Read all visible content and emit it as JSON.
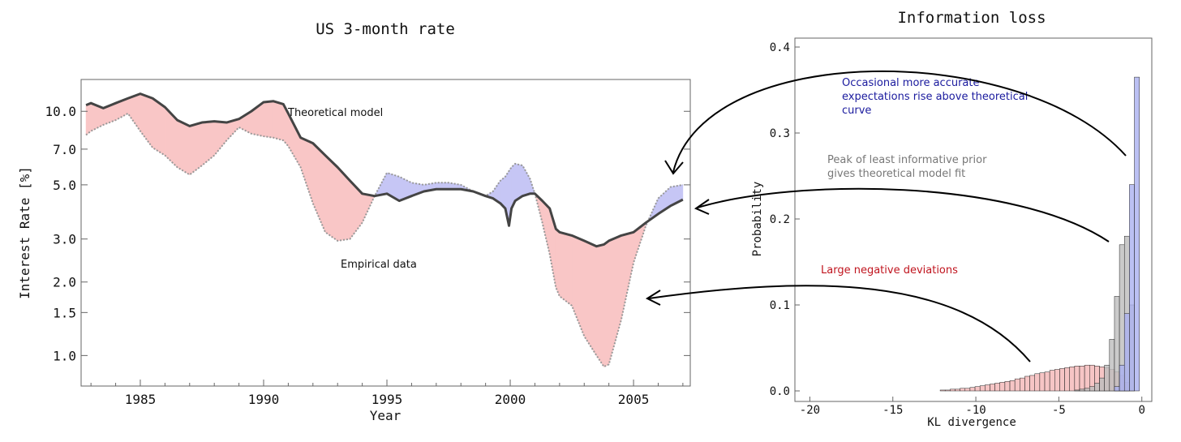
{
  "chart_data": [
    {
      "type": "area",
      "title": "US 3-month rate",
      "xlabel": "Year",
      "ylabel": "Interest Rate [%]",
      "yscale": "log",
      "xlim": [
        1982.6,
        2007.3
      ],
      "ylim": [
        0.75,
        13.5
      ],
      "x_ticks": [
        "1985",
        "1990",
        "1995",
        "2000",
        "2005"
      ],
      "y_ticks": [
        "1.0",
        "1.5",
        "2.0",
        "3.0",
        "5.0",
        "7.0",
        "10.0"
      ],
      "fill_colors": {
        "model_above_data": "#f9c6c6",
        "data_above_model": "#c6c6f5"
      },
      "annotations": [
        "Theoretical model",
        "Empirical data"
      ],
      "series": [
        {
          "name": "Theoretical model",
          "color": "#444444",
          "x": [
            1982.8,
            1983.0,
            1983.5,
            1984.0,
            1984.5,
            1985.0,
            1985.5,
            1986.0,
            1986.5,
            1987.0,
            1987.5,
            1988.0,
            1988.5,
            1989.0,
            1989.5,
            1990.0,
            1990.4,
            1990.8,
            1991.0,
            1991.5,
            1992.0,
            1992.5,
            1993.0,
            1993.5,
            1994.0,
            1994.5,
            1995.0,
            1995.5,
            1996.0,
            1996.5,
            1997.0,
            1997.5,
            1998.0,
            1998.5,
            1999.0,
            1999.3,
            1999.6,
            1999.8,
            1999.95,
            2000.05,
            2000.2,
            2000.5,
            2000.8,
            2001.0,
            2001.3,
            2001.6,
            2001.85,
            2002.0,
            2002.5,
            2003.0,
            2003.5,
            2003.8,
            2004.0,
            2004.5,
            2005.0,
            2005.5,
            2006.0,
            2006.5,
            2007.0
          ],
          "y": [
            10.6,
            10.8,
            10.3,
            10.8,
            11.3,
            11.8,
            11.3,
            10.4,
            9.2,
            8.7,
            9.0,
            9.1,
            9.0,
            9.3,
            10.0,
            10.9,
            11.0,
            10.7,
            9.8,
            7.8,
            7.4,
            6.6,
            5.9,
            5.2,
            4.6,
            4.5,
            4.6,
            4.3,
            4.5,
            4.7,
            4.8,
            4.8,
            4.8,
            4.7,
            4.5,
            4.4,
            4.2,
            4.0,
            3.4,
            4.0,
            4.3,
            4.5,
            4.6,
            4.6,
            4.3,
            4.0,
            3.3,
            3.2,
            3.1,
            2.95,
            2.8,
            2.85,
            2.95,
            3.1,
            3.2,
            3.5,
            3.8,
            4.1,
            4.35
          ]
        },
        {
          "name": "Empirical data",
          "color": "#999999",
          "x": [
            1982.8,
            1983.0,
            1983.5,
            1984.0,
            1984.5,
            1985.0,
            1985.5,
            1986.0,
            1986.5,
            1987.0,
            1987.5,
            1988.0,
            1988.5,
            1989.0,
            1989.5,
            1990.0,
            1990.4,
            1990.8,
            1991.0,
            1991.5,
            1992.0,
            1992.5,
            1993.0,
            1993.5,
            1994.0,
            1994.5,
            1995.0,
            1995.5,
            1996.0,
            1996.5,
            1997.0,
            1997.5,
            1998.0,
            1998.5,
            1999.0,
            1999.3,
            1999.6,
            1999.8,
            1999.95,
            2000.05,
            2000.2,
            2000.5,
            2000.8,
            2001.0,
            2001.3,
            2001.6,
            2001.85,
            2002.0,
            2002.5,
            2003.0,
            2003.5,
            2003.8,
            2004.0,
            2004.5,
            2005.0,
            2005.5,
            2006.0,
            2006.5,
            2007.0
          ],
          "y": [
            8.0,
            8.3,
            8.8,
            9.2,
            9.8,
            8.3,
            7.1,
            6.6,
            5.9,
            5.5,
            6.0,
            6.6,
            7.6,
            8.6,
            8.1,
            7.9,
            7.8,
            7.6,
            7.2,
            5.9,
            4.2,
            3.2,
            2.95,
            3.0,
            3.5,
            4.5,
            5.6,
            5.4,
            5.1,
            5.0,
            5.1,
            5.1,
            5.0,
            4.7,
            4.5,
            4.7,
            5.2,
            5.4,
            5.7,
            5.9,
            6.1,
            6.0,
            5.3,
            4.6,
            3.5,
            2.6,
            1.9,
            1.75,
            1.6,
            1.2,
            1.0,
            0.9,
            0.92,
            1.4,
            2.4,
            3.4,
            4.4,
            4.9,
            5.0
          ]
        }
      ]
    },
    {
      "type": "bar",
      "title": "Information loss",
      "xlabel": "KL divergence",
      "ylabel": "Probability",
      "xlim": [
        -20.9,
        0.6
      ],
      "ylim": [
        0,
        0.4
      ],
      "x_ticks": [
        "-20",
        "-15",
        "-10",
        "-5",
        "0"
      ],
      "y_ticks": [
        "0.0",
        "0.1",
        "0.2",
        "0.3",
        "0.4"
      ],
      "bin_width": 0.3,
      "series": [
        {
          "name": "Large negative deviations",
          "color": "#f4b6b6",
          "bin_centers": [
            -12.0,
            -11.7,
            -11.4,
            -11.1,
            -10.8,
            -10.5,
            -10.2,
            -9.9,
            -9.6,
            -9.3,
            -9.0,
            -8.7,
            -8.4,
            -8.1,
            -7.8,
            -7.5,
            -7.2,
            -6.9,
            -6.6,
            -6.3,
            -6.0,
            -5.7,
            -5.4,
            -5.1,
            -4.8,
            -4.5,
            -4.2,
            -3.9,
            -3.6,
            -3.3,
            -3.0,
            -2.7,
            -2.4,
            -2.1,
            -1.8,
            -1.5,
            -1.2,
            -0.9
          ],
          "values": [
            0.001,
            0.001,
            0.002,
            0.002,
            0.003,
            0.003,
            0.004,
            0.005,
            0.006,
            0.007,
            0.008,
            0.009,
            0.01,
            0.011,
            0.012,
            0.014,
            0.015,
            0.017,
            0.018,
            0.02,
            0.021,
            0.022,
            0.024,
            0.025,
            0.026,
            0.027,
            0.028,
            0.029,
            0.029,
            0.03,
            0.03,
            0.029,
            0.028,
            0.027,
            0.025,
            0.022,
            0.018,
            0.01
          ]
        },
        {
          "name": "Peak of least informative prior",
          "color": "#bdbdbd",
          "bin_centers": [
            -3.9,
            -3.6,
            -3.3,
            -3.0,
            -2.7,
            -2.4,
            -2.1,
            -1.8,
            -1.5,
            -1.2,
            -0.9,
            -0.6
          ],
          "values": [
            0.001,
            0.002,
            0.003,
            0.005,
            0.009,
            0.015,
            0.03,
            0.06,
            0.11,
            0.17,
            0.18,
            0.1
          ]
        },
        {
          "name": "Occasional more accurate expectations",
          "color": "#aab0f0",
          "bin_centers": [
            -1.5,
            -1.2,
            -0.9,
            -0.6,
            -0.3
          ],
          "values": [
            0.005,
            0.03,
            0.09,
            0.24,
            0.365
          ]
        }
      ]
    }
  ],
  "annotations": {
    "blue": "Occasional more accurate expectations rise above theoretical curve",
    "gray": "Peak of least informative prior gives theoretical model fit",
    "red": "Large negative deviations"
  }
}
